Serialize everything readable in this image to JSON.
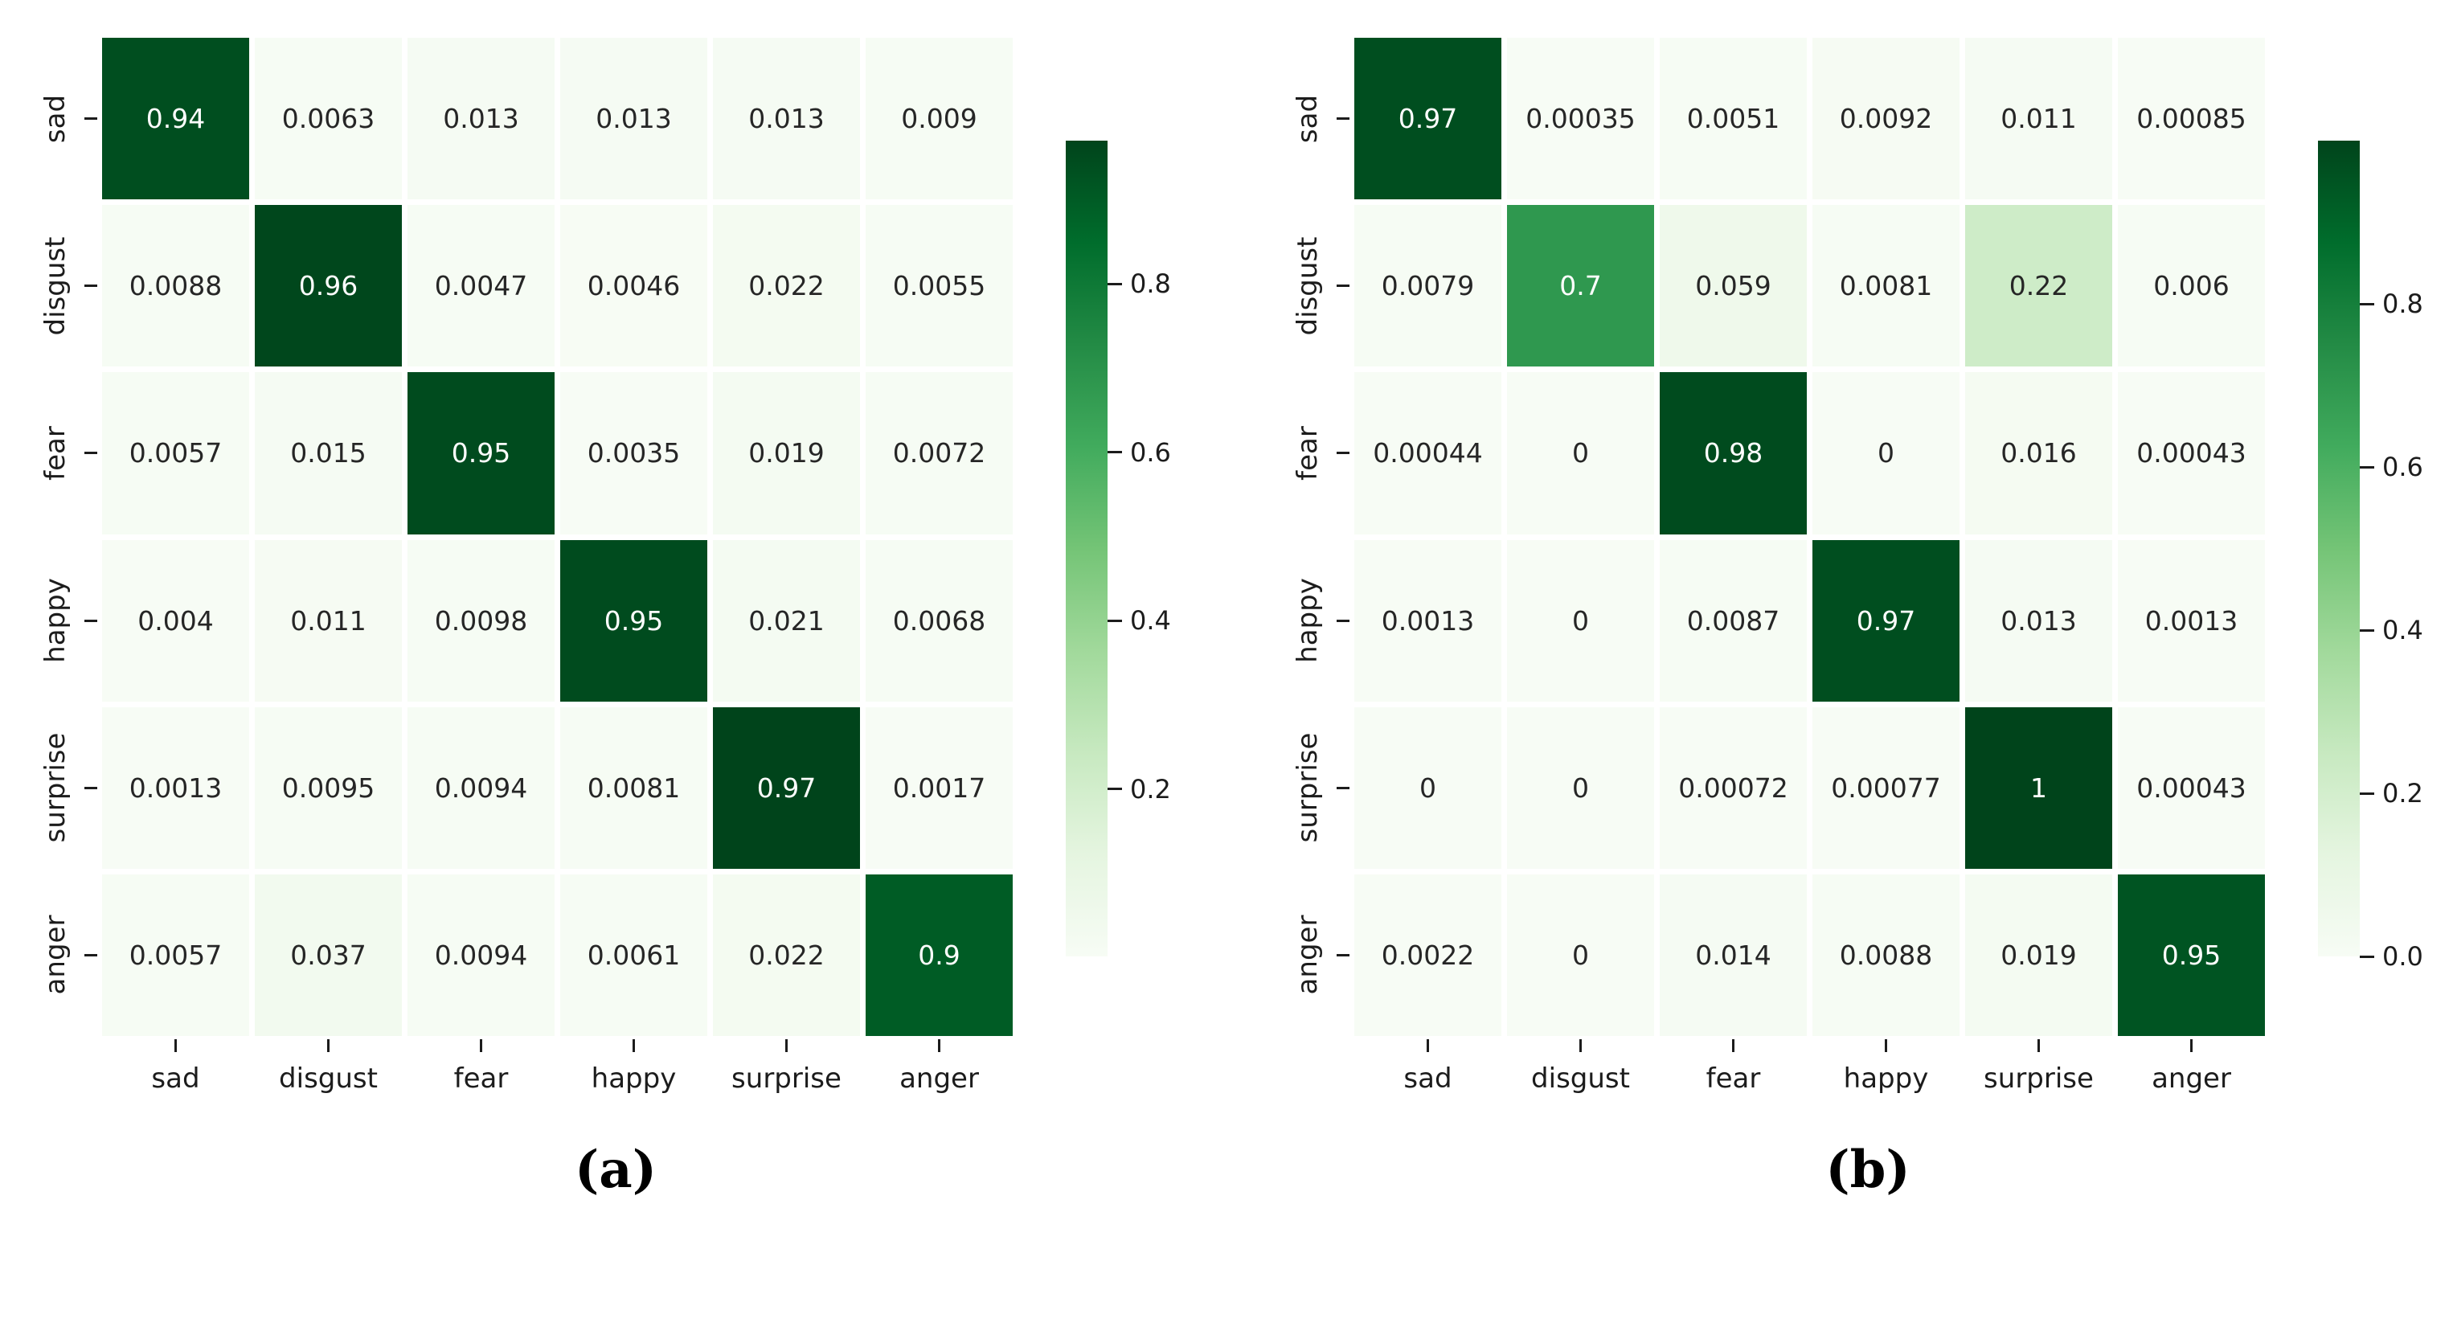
{
  "colors": {
    "background": "#ffffff",
    "colormap_anchors": [
      "#f7fcf5",
      "#e5f5e0",
      "#c7e9c0",
      "#a1d99b",
      "#74c476",
      "#41ab5d",
      "#238b45",
      "#006d2c",
      "#00441b"
    ],
    "annotation_dark": "#262626",
    "annotation_light": "#ffffff",
    "axis_text": "#1c1c1c"
  },
  "chart_data": [
    {
      "type": "heatmap",
      "panel_label": "(a)",
      "title": "",
      "xlabel": "",
      "ylabel": "",
      "x_tick_labels": [
        "sad",
        "disgust",
        "fear",
        "happy",
        "surprise",
        "anger"
      ],
      "y_tick_labels": [
        "sad",
        "disgust",
        "fear",
        "happy",
        "surprise",
        "anger"
      ],
      "values": [
        [
          0.94,
          0.0063,
          0.013,
          0.013,
          0.013,
          0.009
        ],
        [
          0.0088,
          0.96,
          0.0047,
          0.0046,
          0.022,
          0.0055
        ],
        [
          0.0057,
          0.015,
          0.95,
          0.0035,
          0.019,
          0.0072
        ],
        [
          0.004,
          0.011,
          0.0098,
          0.95,
          0.021,
          0.0068
        ],
        [
          0.0013,
          0.0095,
          0.0094,
          0.0081,
          0.97,
          0.0017
        ],
        [
          0.0057,
          0.037,
          0.0094,
          0.0061,
          0.022,
          0.9
        ]
      ],
      "colormap": "Greens",
      "vmin": 0.0013,
      "vmax": 0.97,
      "annotated": true,
      "grid": false,
      "colorbar_position": "right",
      "colorbar_tick_labels": [
        "0.8",
        "0.6",
        "0.4",
        "0.2"
      ]
    },
    {
      "type": "heatmap",
      "panel_label": "(b)",
      "title": "",
      "xlabel": "",
      "ylabel": "",
      "x_tick_labels": [
        "sad",
        "disgust",
        "fear",
        "happy",
        "surprise",
        "anger"
      ],
      "y_tick_labels": [
        "sad",
        "disgust",
        "fear",
        "happy",
        "surprise",
        "anger"
      ],
      "values": [
        [
          0.97,
          0.00035,
          0.0051,
          0.0092,
          0.011,
          0.00085
        ],
        [
          0.0079,
          0.7,
          0.059,
          0.0081,
          0.22,
          0.006
        ],
        [
          0.00044,
          0,
          0.98,
          0,
          0.016,
          0.00043
        ],
        [
          0.0013,
          0,
          0.0087,
          0.97,
          0.013,
          0.0013
        ],
        [
          0,
          0,
          0.00072,
          0.00077,
          1,
          0.00043
        ],
        [
          0.0022,
          0,
          0.014,
          0.0088,
          0.019,
          0.95
        ]
      ],
      "colormap": "Greens",
      "vmin": 0,
      "vmax": 1,
      "annotated": true,
      "grid": false,
      "colorbar_position": "right",
      "colorbar_tick_labels": [
        "0.8",
        "0.6",
        "0.4",
        "0.2",
        "0.0"
      ]
    }
  ]
}
